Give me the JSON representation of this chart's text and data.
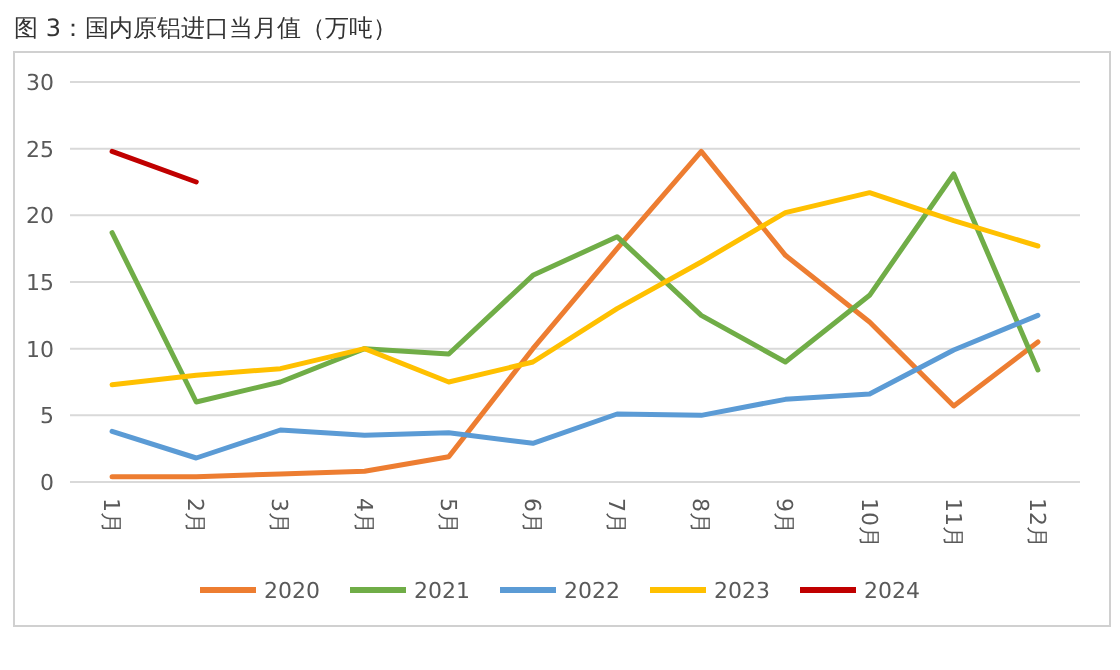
{
  "chart_data": {
    "type": "line",
    "title": "图 3：国内原铝进口当月值（万吨）",
    "categories": [
      "1月",
      "2月",
      "3月",
      "4月",
      "5月",
      "6月",
      "7月",
      "8月",
      "9月",
      "10月",
      "11月",
      "12月"
    ],
    "series": [
      {
        "name": "2020",
        "color": "#ed7d31",
        "values": [
          0.4,
          0.4,
          0.6,
          0.8,
          1.9,
          10,
          17.5,
          24.8,
          17,
          12,
          5.7,
          10.5
        ]
      },
      {
        "name": "2021",
        "color": "#70ad47",
        "values": [
          18.7,
          6,
          7.5,
          10,
          9.6,
          15.5,
          18.4,
          12.5,
          9,
          14,
          23.1,
          8.4
        ]
      },
      {
        "name": "2022",
        "color": "#5b9bd5",
        "values": [
          3.8,
          1.8,
          3.9,
          3.5,
          3.7,
          2.9,
          5.1,
          5,
          6.2,
          6.6,
          9.9,
          12.5
        ]
      },
      {
        "name": "2023",
        "color": "#ffc000",
        "values": [
          7.3,
          8,
          8.5,
          10,
          7.5,
          9,
          13,
          16.5,
          20.2,
          21.7,
          19.6,
          17.7
        ]
      },
      {
        "name": "2024",
        "color": "#c00000",
        "values": [
          24.8,
          22.5,
          null,
          null,
          null,
          null,
          null,
          null,
          null,
          null,
          null,
          null
        ]
      }
    ],
    "ylim": [
      0,
      30
    ],
    "yticks": [
      0,
      5,
      10,
      15,
      20,
      25,
      30
    ],
    "grid": "y",
    "legend": "bottom",
    "marker": "none",
    "line_style": "solid"
  }
}
